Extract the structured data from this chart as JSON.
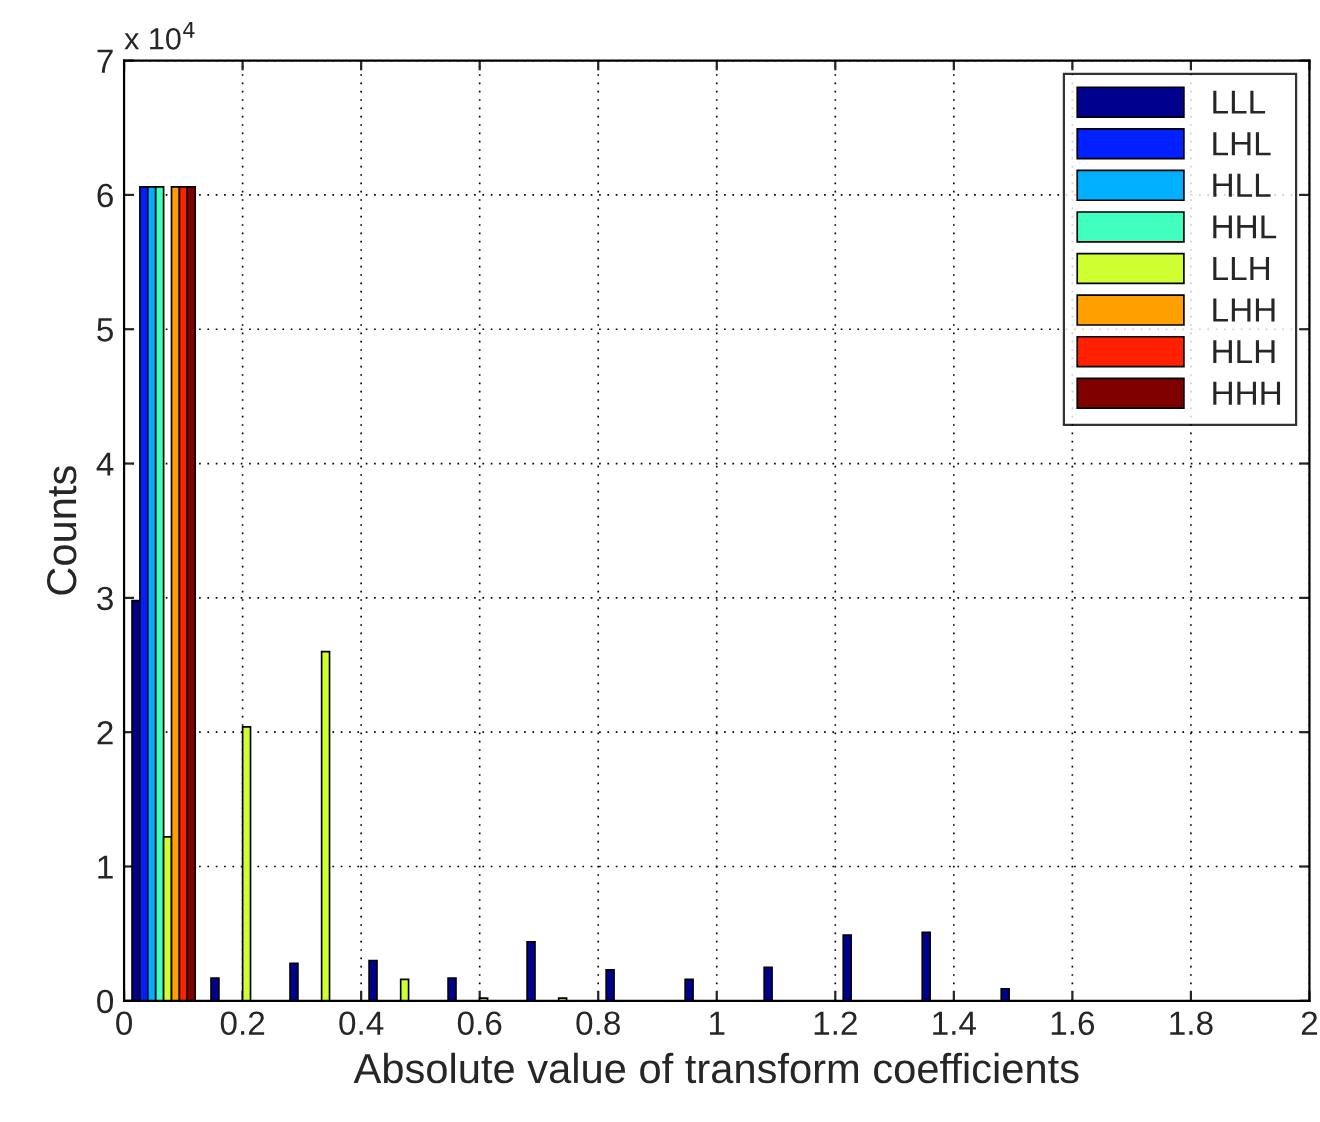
{
  "chart_data": {
    "type": "bar",
    "xlabel": "Absolute value of transform coefficients",
    "ylabel": "Counts",
    "annotations": [
      "x 10$^{4}$"
    ],
    "x": [
      0.0667,
      0.2,
      0.3333,
      0.4667,
      0.6,
      0.7333,
      0.8667,
      1.0,
      1.1333,
      1.2667,
      1.4,
      1.5333,
      1.6667,
      1.8,
      1.9333
    ],
    "series": [
      {
        "name": "LLL",
        "color": "#00008f",
        "values": [
          2.98,
          0.17,
          0.28,
          0.3,
          0.17,
          0.44,
          0.23,
          0.16,
          0.25,
          0.49,
          0.51,
          0.09,
          0,
          0,
          0
        ]
      },
      {
        "name": "LHL",
        "color": "#0020ff",
        "values": [
          6.06,
          0,
          0,
          0,
          0,
          0,
          0,
          0,
          0,
          0,
          0,
          0,
          0,
          0,
          0
        ]
      },
      {
        "name": "HLL",
        "color": "#00afff",
        "values": [
          6.06,
          0,
          0,
          0,
          0,
          0,
          0,
          0,
          0,
          0,
          0,
          0,
          0,
          0,
          0
        ]
      },
      {
        "name": "HHL",
        "color": "#40ffbf",
        "values": [
          6.06,
          0,
          0,
          0,
          0,
          0,
          0,
          0,
          0,
          0,
          0,
          0,
          0,
          0,
          0
        ]
      },
      {
        "name": "LLH",
        "color": "#cfff30",
        "values": [
          1.22,
          2.04,
          2.6,
          0.16,
          0.02,
          0.02,
          0,
          0,
          0,
          0,
          0,
          0,
          0,
          0,
          0
        ]
      },
      {
        "name": "LHH",
        "color": "#ff9f00",
        "values": [
          6.06,
          0,
          0,
          0,
          0,
          0,
          0,
          0,
          0,
          0,
          0,
          0,
          0,
          0,
          0
        ]
      },
      {
        "name": "HLH",
        "color": "#ff2000",
        "values": [
          6.06,
          0,
          0,
          0,
          0,
          0,
          0,
          0,
          0,
          0,
          0,
          0,
          0,
          0,
          0
        ]
      },
      {
        "name": "HHH",
        "color": "#800000",
        "values": [
          6.06,
          0,
          0,
          0,
          0,
          0,
          0,
          0,
          0,
          0,
          0,
          0,
          0,
          0,
          0
        ]
      }
    ],
    "xlim": [
      0,
      2
    ],
    "xticks": [
      0,
      0.2,
      0.4,
      0.6,
      0.8,
      1,
      1.2,
      1.4,
      1.6,
      1.8,
      2
    ],
    "ylim": [
      0,
      7
    ],
    "yticks": [
      0,
      1,
      2,
      3,
      4,
      5,
      6,
      7
    ],
    "grid": true,
    "legend": "top right"
  }
}
